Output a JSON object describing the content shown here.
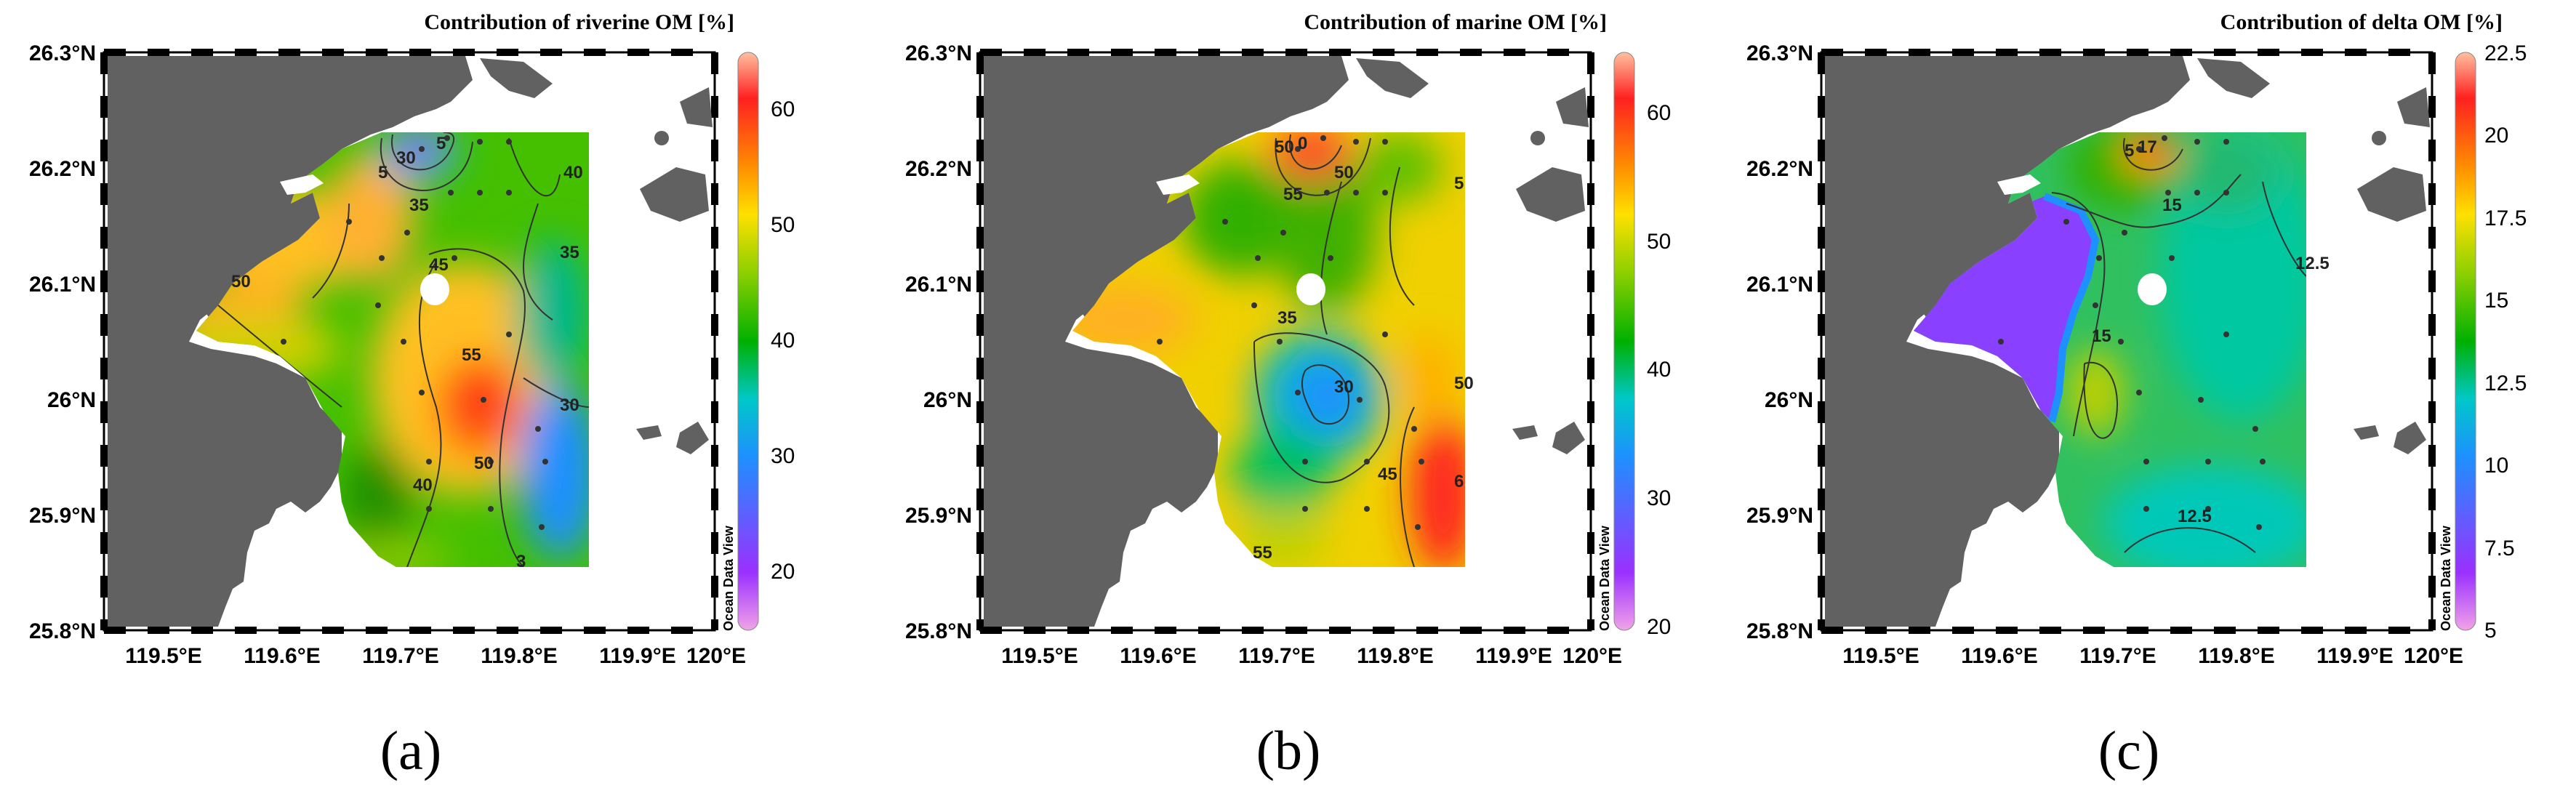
{
  "panels": [
    {
      "id": "a",
      "title": "Contribution of riverine OM [%]",
      "caption": "(a)",
      "colorbar": {
        "ticks": [
          "60",
          "50",
          "40",
          "30",
          "20"
        ],
        "range": [
          15,
          65
        ],
        "gradient": [
          "#f2a3e8",
          "#9b30ff",
          "#1e90ff",
          "#00c8c8",
          "#00b000",
          "#8fd000",
          "#ffe000",
          "#ff9000",
          "#ff2020",
          "#ffc0a0"
        ],
        "credit": "Ocean Data View"
      },
      "contour_labels": [
        "30",
        "5",
        "5",
        "35",
        "45",
        "40",
        "35",
        "50",
        "55",
        "30",
        "50",
        "40",
        "3"
      ]
    },
    {
      "id": "b",
      "title": "Contribution  of marine OM [%]",
      "caption": "(b)",
      "colorbar": {
        "ticks": [
          "60",
          "50",
          "40",
          "30",
          "20"
        ],
        "range": [
          20,
          65
        ],
        "gradient": [
          "#f2a3e8",
          "#9b30ff",
          "#1e90ff",
          "#00c8c8",
          "#00b000",
          "#8fd000",
          "#ffe000",
          "#ff9000",
          "#ff2020",
          "#ffc0a0"
        ],
        "credit": "Ocean Data View"
      },
      "contour_labels": [
        "0",
        "50",
        "55",
        "50",
        "5",
        "35",
        "30",
        "50",
        "45",
        "6",
        "55"
      ]
    },
    {
      "id": "c",
      "title": "Contribution of delta OM [%]",
      "caption": "(c)",
      "colorbar": {
        "ticks": [
          "22.5",
          "20",
          "17.5",
          "15",
          "12.5",
          "10",
          "7.5",
          "5"
        ],
        "range": [
          5,
          22.5
        ],
        "gradient": [
          "#f2a3e8",
          "#9b30ff",
          "#1e90ff",
          "#00c8c8",
          "#00b000",
          "#8fd000",
          "#ffe000",
          "#ff9000",
          "#ff2020",
          "#ffc0a0"
        ],
        "credit": "Ocean Data View"
      },
      "contour_labels": [
        "17",
        "5",
        "15",
        "12.5",
        "15",
        "12.5"
      ]
    }
  ],
  "axes": {
    "x_ticks": [
      "119.5°E",
      "119.6°E",
      "119.7°E",
      "119.8°E",
      "119.9°E",
      "120°E"
    ],
    "y_ticks": [
      "26.3°N",
      "26.2°N",
      "26.1°N",
      "26°N",
      "25.9°N",
      "25.8°N"
    ]
  }
}
